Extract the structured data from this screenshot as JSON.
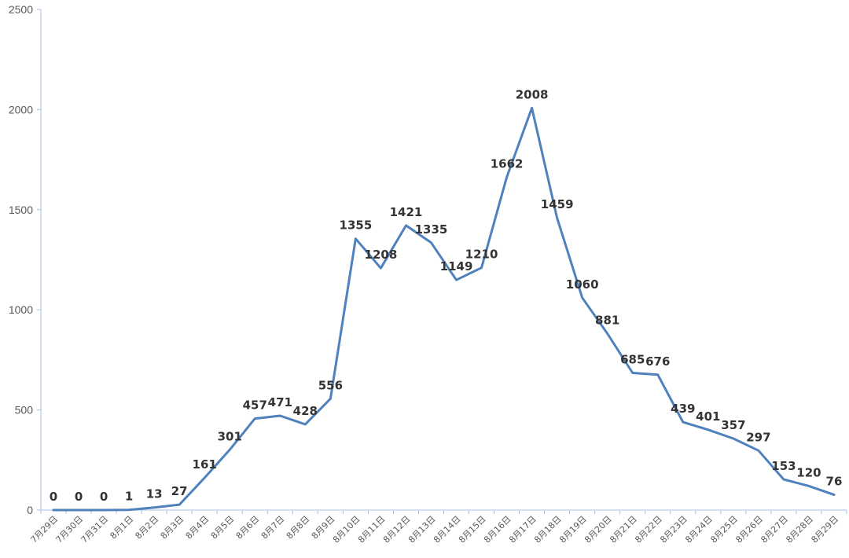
{
  "chart_data": {
    "type": "line",
    "title": "",
    "xlabel": "",
    "ylabel": "",
    "ylim": [
      0,
      2500
    ],
    "yticks": [
      "0",
      "500",
      "1000",
      "1500",
      "2000",
      "2500"
    ],
    "grid": false,
    "legend": "none",
    "categories": [
      "7月29日",
      "7月30日",
      "7月31日",
      "8月1日",
      "8月2日",
      "8月3日",
      "8月4日",
      "8月5日",
      "8月6日",
      "8月7日",
      "8月8日",
      "8月9日",
      "8月10日",
      "8月11日",
      "8月12日",
      "8月13日",
      "8月14日",
      "8月15日",
      "8月16日",
      "8月17日",
      "8月18日",
      "8月19日",
      "8月20日",
      "8月21日",
      "8月22日",
      "8月23日",
      "8月24日",
      "8月25日",
      "8月26日",
      "8月27日",
      "8月28日",
      "8月29日"
    ],
    "series": [
      {
        "values": [
          0,
          0,
          0,
          1,
          13,
          27,
          161,
          301,
          457,
          471,
          428,
          556,
          1355,
          1208,
          1421,
          1335,
          1149,
          1210,
          1662,
          2008,
          1459,
          1060,
          881,
          685,
          676,
          439,
          401,
          357,
          297,
          153,
          120,
          76
        ],
        "color": "#4F81BD"
      }
    ]
  }
}
